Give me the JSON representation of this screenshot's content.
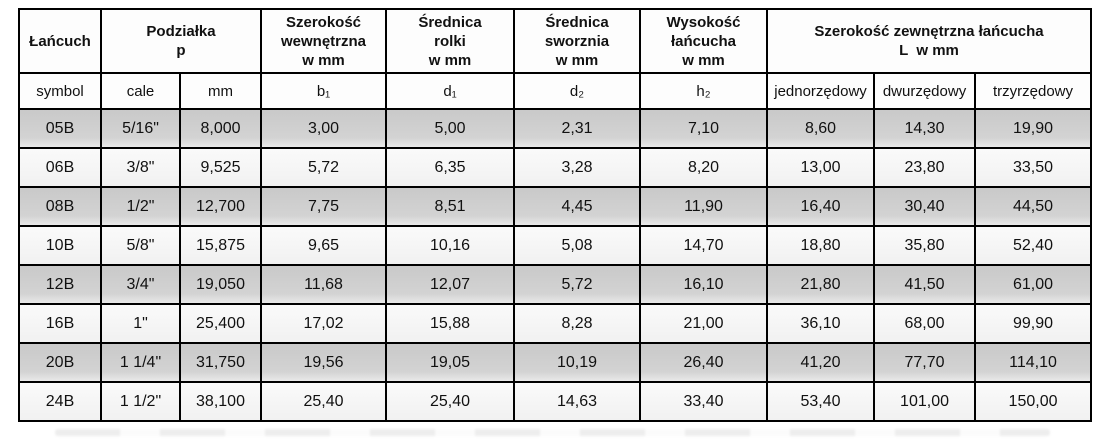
{
  "table": {
    "group_headers": [
      {
        "colspan": 1,
        "lines": [
          "Łańcuch"
        ]
      },
      {
        "colspan": 2,
        "lines": [
          "Podziałka",
          "p"
        ]
      },
      {
        "colspan": 1,
        "lines": [
          "Szerokość",
          "wewnętrzna",
          "w mm"
        ]
      },
      {
        "colspan": 1,
        "lines": [
          "Średnica",
          "rolki",
          "w mm"
        ]
      },
      {
        "colspan": 1,
        "lines": [
          "Średnica",
          "sworznia",
          "w mm"
        ]
      },
      {
        "colspan": 1,
        "lines": [
          "Wysokość",
          "łańcucha",
          "w mm"
        ]
      },
      {
        "colspan": 3,
        "lines": [
          "Szerokość zewnętrzna łańcucha",
          "L  w mm"
        ]
      }
    ],
    "sub_headers": [
      "symbol",
      "cale",
      "mm",
      "b₁",
      "d₁",
      "d₂",
      "h₂",
      "jednorzędowy",
      "dwurzędowy",
      "trzyrzędowy"
    ],
    "rows": [
      [
        "05B",
        "5/16\"",
        "8,000",
        "3,00",
        "5,00",
        "2,31",
        "7,10",
        "8,60",
        "14,30",
        "19,90"
      ],
      [
        "06B",
        "3/8\"",
        "9,525",
        "5,72",
        "6,35",
        "3,28",
        "8,20",
        "13,00",
        "23,80",
        "33,50"
      ],
      [
        "08B",
        "1/2\"",
        "12,700",
        "7,75",
        "8,51",
        "4,45",
        "11,90",
        "16,40",
        "30,40",
        "44,50"
      ],
      [
        "10B",
        "5/8\"",
        "15,875",
        "9,65",
        "10,16",
        "5,08",
        "14,70",
        "18,80",
        "35,80",
        "52,40"
      ],
      [
        "12B",
        "3/4\"",
        "19,050",
        "11,68",
        "12,07",
        "5,72",
        "16,10",
        "21,80",
        "41,50",
        "61,00"
      ],
      [
        "16B",
        "1\"",
        "25,400",
        "17,02",
        "15,88",
        "8,28",
        "21,00",
        "36,10",
        "68,00",
        "99,90"
      ],
      [
        "20B",
        "1 1/4\"",
        "31,750",
        "19,56",
        "19,05",
        "10,19",
        "26,40",
        "41,20",
        "77,70",
        "114,10"
      ],
      [
        "24B",
        "1 1/2\"",
        "38,100",
        "25,40",
        "25,40",
        "14,63",
        "33,40",
        "53,40",
        "101,00",
        "150,00"
      ]
    ],
    "column_keys": [
      "symbol",
      "cale",
      "mm",
      "b1",
      "d1",
      "d2",
      "h2",
      "jednorzedowy",
      "dwurzedowy",
      "trzyrzedowy"
    ],
    "row_shading_order": [
      "gray",
      "light"
    ],
    "colors": {
      "border": "#000000",
      "header_bg": "#fdfdfd",
      "row_gray": "#d2d2d2",
      "row_light": "#f4f4f4",
      "text": "#111111"
    }
  }
}
